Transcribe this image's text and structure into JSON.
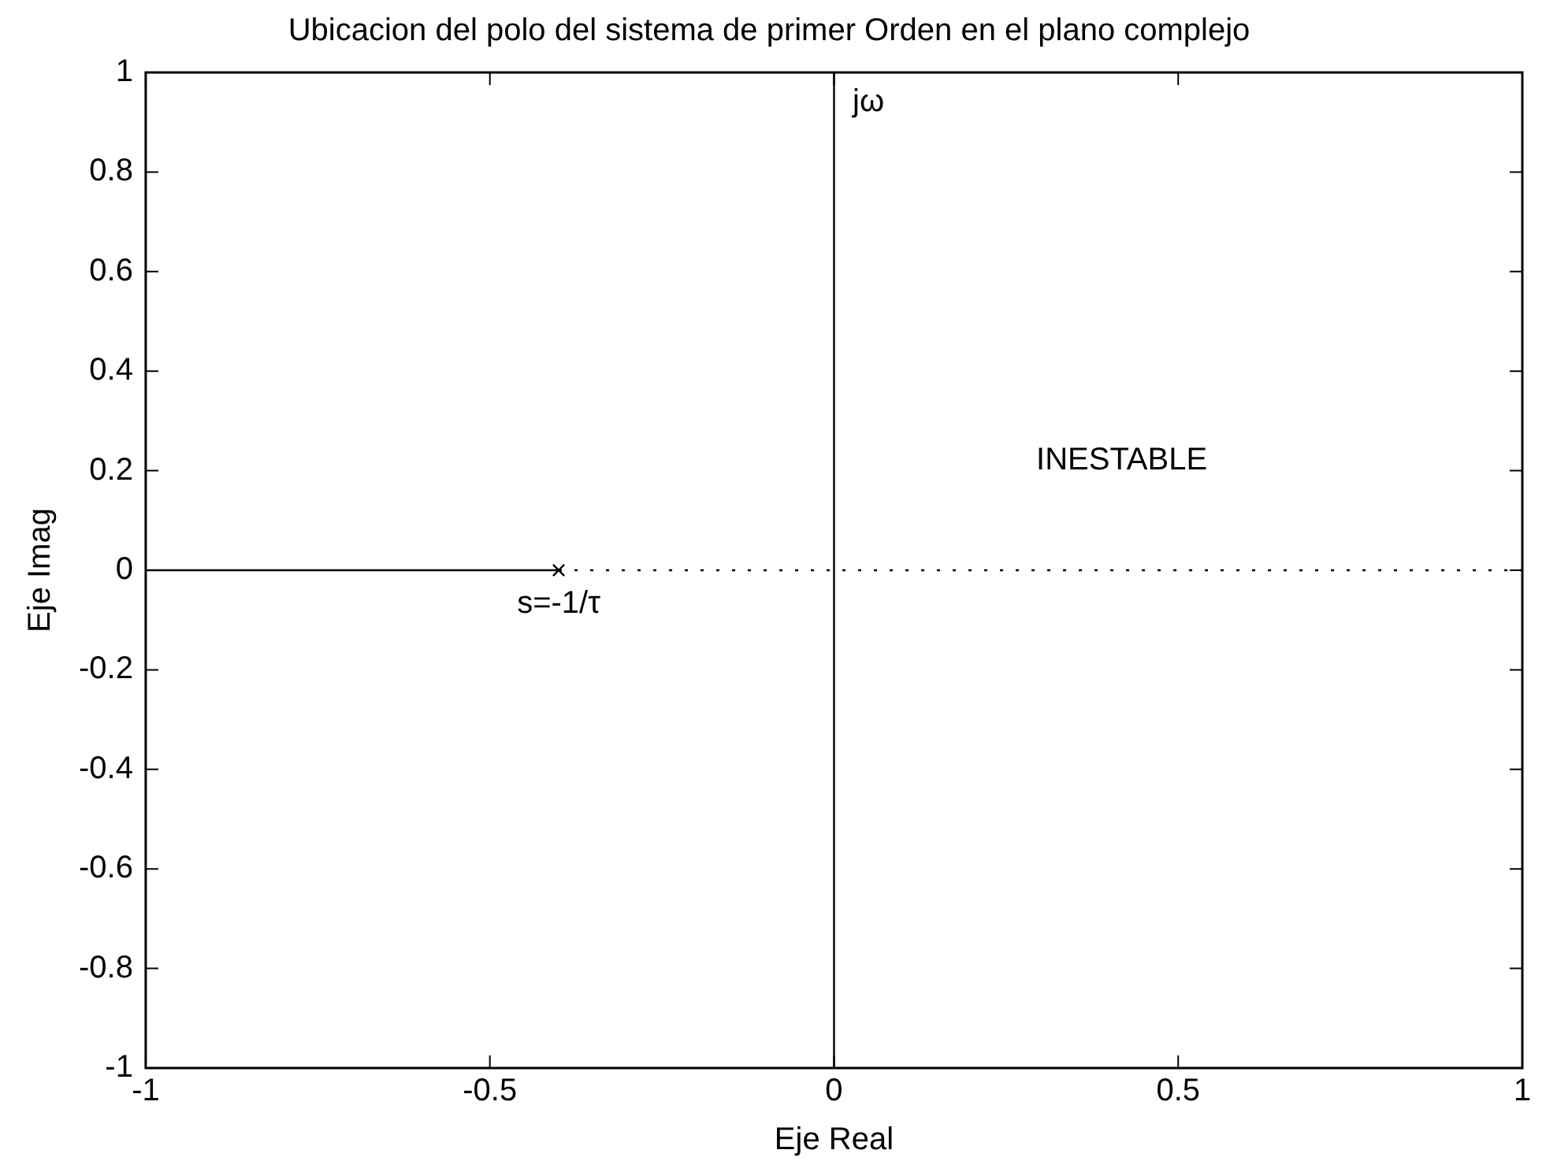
{
  "chart_data": {
    "type": "scatter",
    "title": "Ubicacion del polo del sistema de primer Orden en el plano complejo",
    "xlabel": "Eje Real",
    "ylabel": "Eje Imag",
    "series": [
      {
        "type": "line",
        "x": [
          -1,
          -0.4
        ],
        "values": [
          0,
          0
        ],
        "color": "#000000",
        "line_style": "solid",
        "marker": "none"
      },
      {
        "type": "line",
        "x": [
          -0.4,
          1
        ],
        "values": [
          0,
          0
        ],
        "color": "#000000",
        "line_style": "dotted",
        "marker": "none"
      },
      {
        "type": "scatter",
        "x": [
          -0.4
        ],
        "values": [
          0
        ],
        "color": "#000000",
        "marker": "cross"
      }
    ],
    "ref_lines": [
      {
        "axis": "x",
        "value": 0,
        "color": "#000000",
        "line_style": "solid"
      }
    ],
    "annotations": [
      "jω",
      "INESTABLE",
      "s=-1/τ"
    ],
    "xlim": [
      -1,
      1
    ],
    "xticks": [
      -1,
      -0.5,
      0,
      0.5,
      1
    ],
    "ylim": [
      -1,
      1
    ],
    "yticks": [
      -1,
      -0.8,
      -0.6,
      -0.4,
      -0.2,
      0,
      0.2,
      0.4,
      0.6,
      0.8,
      1
    ],
    "grid": false,
    "legend": false
  }
}
